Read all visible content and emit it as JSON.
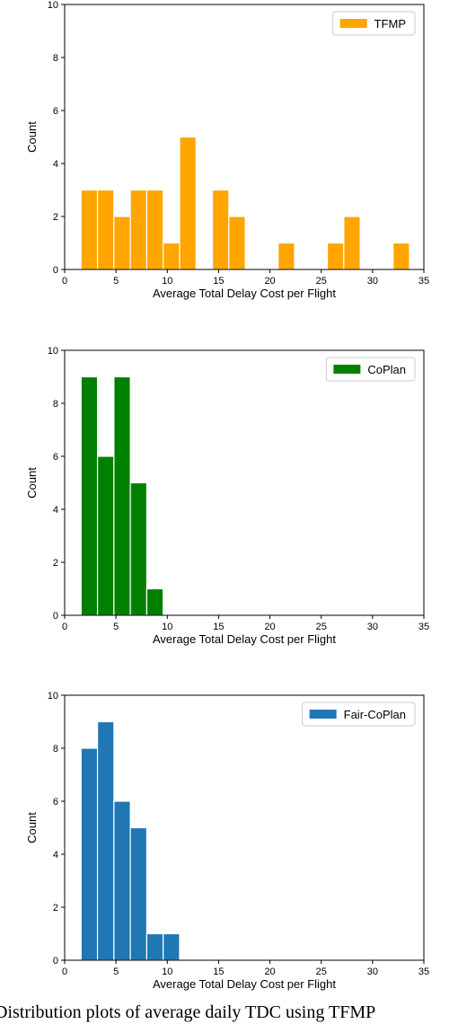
{
  "chart_data": [
    {
      "type": "bar",
      "xlabel": "Average Total Delay Cost per Flight",
      "ylabel": "Count",
      "xlim": [
        0,
        35
      ],
      "ylim": [
        0,
        10
      ],
      "xticks": [
        0,
        5,
        10,
        15,
        20,
        25,
        30,
        35
      ],
      "yticks": [
        0,
        2,
        4,
        6,
        8,
        10
      ],
      "grid": false,
      "legend_position": "top-right",
      "series": [
        {
          "name": "TFMP",
          "color": "#ffa500",
          "bin_edges": [
            1.6,
            3.2,
            4.8,
            6.4,
            8.0,
            9.6,
            11.2,
            12.8,
            14.4,
            16.0,
            17.6,
            19.2,
            20.8,
            22.4,
            24.0,
            25.6,
            27.2,
            28.8,
            30.4,
            32.0,
            33.6
          ],
          "values": [
            3,
            3,
            2,
            3,
            3,
            1,
            5,
            0,
            3,
            2,
            0,
            0,
            1,
            0,
            0,
            1,
            2,
            0,
            0,
            1
          ]
        }
      ]
    },
    {
      "type": "bar",
      "xlabel": "Average Total Delay Cost per Flight",
      "ylabel": "Count",
      "xlim": [
        0,
        35
      ],
      "ylim": [
        0,
        10
      ],
      "xticks": [
        0,
        5,
        10,
        15,
        20,
        25,
        30,
        35
      ],
      "yticks": [
        0,
        2,
        4,
        6,
        8,
        10
      ],
      "grid": false,
      "legend_position": "top-right",
      "series": [
        {
          "name": "CoPlan",
          "color": "#008000",
          "bin_edges": [
            1.6,
            3.2,
            4.8,
            6.4,
            8.0,
            9.6
          ],
          "values": [
            9,
            6,
            9,
            5,
            1
          ]
        }
      ]
    },
    {
      "type": "bar",
      "xlabel": "Average Total Delay Cost per Flight",
      "ylabel": "Count",
      "xlim": [
        0,
        35
      ],
      "ylim": [
        0,
        10
      ],
      "xticks": [
        0,
        5,
        10,
        15,
        20,
        25,
        30,
        35
      ],
      "yticks": [
        0,
        2,
        4,
        6,
        8,
        10
      ],
      "grid": false,
      "legend_position": "top-right",
      "series": [
        {
          "name": "Fair-CoPlan",
          "color": "#1f77b4",
          "bin_edges": [
            1.6,
            3.2,
            4.8,
            6.4,
            8.0,
            9.6,
            11.2
          ],
          "values": [
            8,
            9,
            6,
            5,
            1,
            1
          ]
        }
      ]
    }
  ],
  "caption": "Distribution plots of average daily TDC using TFMP"
}
